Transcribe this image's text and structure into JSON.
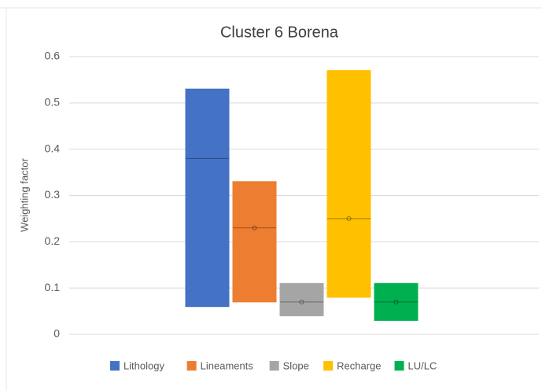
{
  "chart_data": {
    "type": "box",
    "title": "Cluster 6  Borena",
    "y_label": "Weighting factor",
    "ylim": [
      0,
      0.6
    ],
    "yticks": [
      0,
      0.1,
      0.2,
      0.3,
      0.4,
      0.5,
      0.6
    ],
    "grid": true,
    "series": [
      {
        "name": "Lithology",
        "color": "#4472c4",
        "low": 0.06,
        "high": 0.53,
        "median": 0.38,
        "mean": null
      },
      {
        "name": "Lineaments",
        "color": "#ed7d31",
        "low": 0.07,
        "high": 0.33,
        "median": 0.23,
        "mean": 0.23
      },
      {
        "name": "Slope",
        "color": "#a5a5a5",
        "low": 0.04,
        "high": 0.11,
        "median": 0.07,
        "mean": 0.07
      },
      {
        "name": "Recharge",
        "color": "#ffc000",
        "low": 0.08,
        "high": 0.57,
        "median": 0.25,
        "mean": 0.25
      },
      {
        "name": "LU/LC",
        "color": "#00b050",
        "low": 0.03,
        "high": 0.11,
        "median": 0.07,
        "mean": 0.07
      }
    ]
  }
}
